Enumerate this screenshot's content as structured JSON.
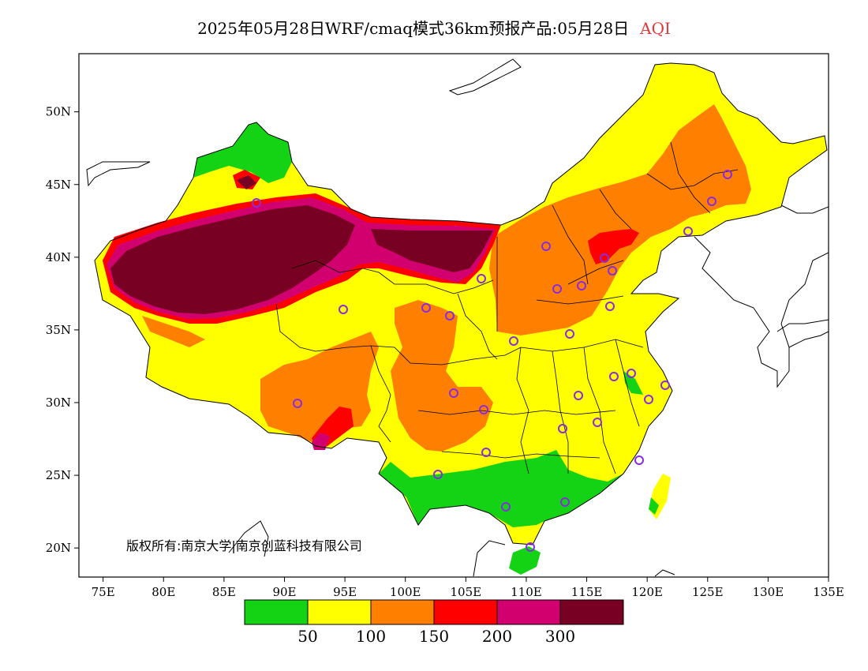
{
  "title": {
    "main": "2025年05月28日WRF/cmaq模式36km预报产品:05月28日",
    "variable": "AQI"
  },
  "axes": {
    "lat_ticks": [
      "20N",
      "25N",
      "30N",
      "35N",
      "40N",
      "45N",
      "50N"
    ],
    "lon_ticks": [
      "75E",
      "80E",
      "85E",
      "90E",
      "95E",
      "100E",
      "105E",
      "110E",
      "115E",
      "120E",
      "125E",
      "130E",
      "135E"
    ],
    "lon_range": [
      73,
      135
    ],
    "lat_range": [
      18,
      54
    ]
  },
  "legend": {
    "colors": [
      "#14d214",
      "#ffff00",
      "#ff8000",
      "#ff0000",
      "#d2006e",
      "#780023"
    ],
    "labels": [
      "50",
      "100",
      "150",
      "200",
      "300"
    ]
  },
  "copyright": "版权所有:南京大学|南京创蓝科技有限公司",
  "colors": {
    "good": "#14d214",
    "moderate": "#ffff00",
    "sensitive": "#ff8000",
    "unhealthy": "#ff0000",
    "very_unhealthy": "#d2006e",
    "hazardous": "#780023",
    "station_circle": "#8a2be2",
    "title_variable": "#e03a3a"
  }
}
